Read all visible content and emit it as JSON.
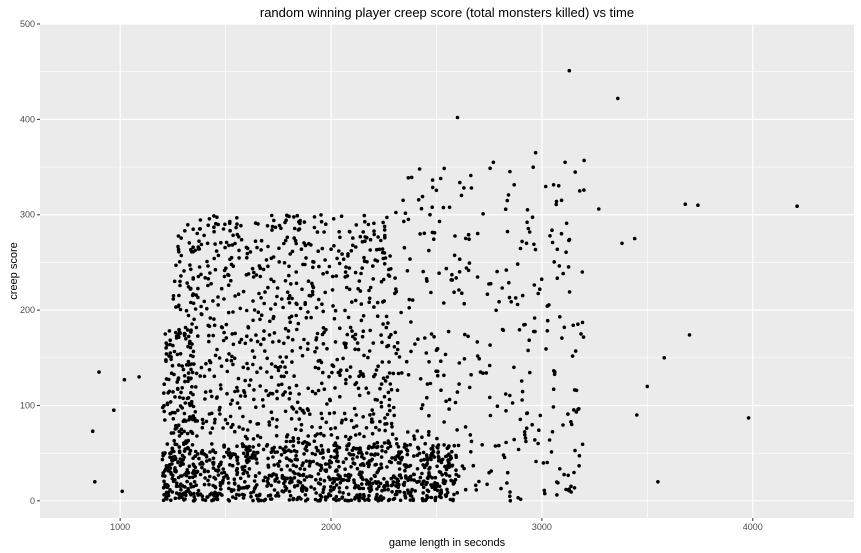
{
  "chart_data": {
    "type": "scatter",
    "title": "random winning player creep score (total monsters killed) vs time",
    "xlabel": "game length in seconds",
    "ylabel": "creep score",
    "xlim": [
      620,
      4480
    ],
    "ylim": [
      -18,
      500
    ],
    "x_ticks": [
      1000,
      2000,
      3000,
      4000
    ],
    "x_tick_labels": [
      "1000",
      "2000",
      "3000",
      "4000"
    ],
    "y_ticks": [
      0,
      100,
      200,
      300,
      400,
      500
    ],
    "y_tick_labels": [
      "0",
      "100",
      "200",
      "300",
      "400",
      "500"
    ],
    "grid": true,
    "point_color": "#000000",
    "panel_color": "#ebebeb",
    "grid_color": "#ffffff",
    "clusters": [
      {
        "x_range": [
          1200,
          2600
        ],
        "y_range": [
          0,
          60
        ],
        "count": 900
      },
      {
        "x_range": [
          1250,
          2300
        ],
        "y_range": [
          60,
          300
        ],
        "count": 800
      },
      {
        "x_range": [
          1200,
          1350
        ],
        "y_range": [
          0,
          180
        ],
        "count": 150
      },
      {
        "x_range": [
          2300,
          3200
        ],
        "y_range": [
          0,
          350
        ],
        "count": 350
      }
    ],
    "points": [
      {
        "x": 3130,
        "y": 451
      },
      {
        "x": 3360,
        "y": 422
      },
      {
        "x": 2600,
        "y": 402
      },
      {
        "x": 2970,
        "y": 365
      },
      {
        "x": 3200,
        "y": 357
      },
      {
        "x": 3110,
        "y": 355
      },
      {
        "x": 4210,
        "y": 309
      },
      {
        "x": 3680,
        "y": 311
      },
      {
        "x": 3740,
        "y": 310
      },
      {
        "x": 3270,
        "y": 306
      },
      {
        "x": 3440,
        "y": 275
      },
      {
        "x": 3380,
        "y": 270
      },
      {
        "x": 3700,
        "y": 174
      },
      {
        "x": 3580,
        "y": 150
      },
      {
        "x": 3500,
        "y": 120
      },
      {
        "x": 3980,
        "y": 87
      },
      {
        "x": 3450,
        "y": 90
      },
      {
        "x": 3550,
        "y": 20
      },
      {
        "x": 870,
        "y": 73
      },
      {
        "x": 900,
        "y": 135
      },
      {
        "x": 970,
        "y": 95
      },
      {
        "x": 1020,
        "y": 127
      },
      {
        "x": 880,
        "y": 20
      },
      {
        "x": 1010,
        "y": 10
      },
      {
        "x": 1090,
        "y": 130
      },
      {
        "x": 1490,
        "y": 285
      },
      {
        "x": 1840,
        "y": 299
      },
      {
        "x": 2420,
        "y": 348
      },
      {
        "x": 2770,
        "y": 355
      },
      {
        "x": 2520,
        "y": 338
      }
    ]
  }
}
